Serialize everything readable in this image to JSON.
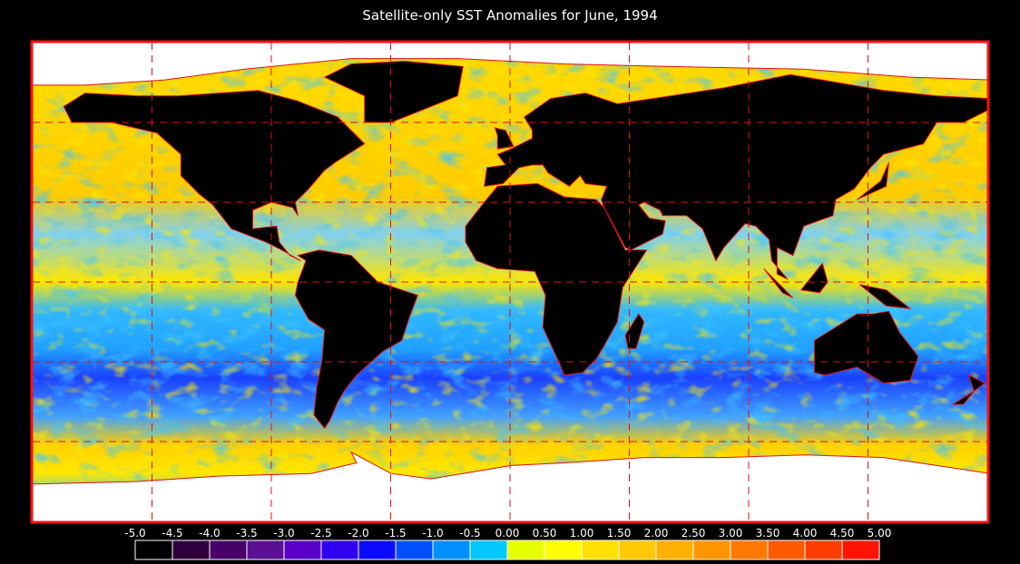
{
  "title": "Satellite-only SST Anomalies for June, 1994",
  "colorbar": {
    "labels": [
      "-5.0",
      "-4.5",
      "-4.0",
      "-3.5",
      "-3.0",
      "-2.5",
      "-2.0",
      "-1.5",
      "-1.0",
      "-0.5",
      "0.00",
      "0.50",
      "1.00",
      "1.50",
      "2.00",
      "2.50",
      "3.00",
      "3.50",
      "4.00",
      "4.50",
      "5.00"
    ],
    "colors": [
      "#000000",
      "#30003c",
      "#48006a",
      "#5a1090",
      "#5a00c8",
      "#3000f0",
      "#0a0aff",
      "#0050ff",
      "#0090ff",
      "#00c8ff",
      "#e8ff00",
      "#ffff00",
      "#ffe000",
      "#ffc800",
      "#ffb000",
      "#ff9600",
      "#ff7800",
      "#ff5a00",
      "#ff3c00",
      "#ff1400"
    ]
  }
}
